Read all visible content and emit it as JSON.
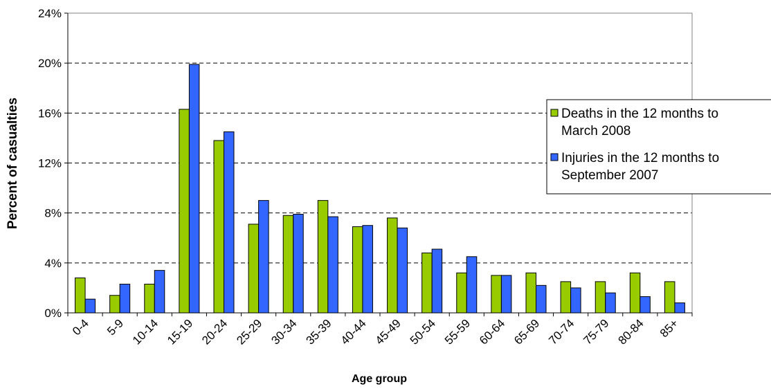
{
  "chart_data": {
    "type": "bar",
    "title": "",
    "xlabel": "Age group",
    "ylabel": "Percent of casualties",
    "ylim": [
      0,
      24
    ],
    "yticks": [
      0,
      4,
      8,
      12,
      16,
      20,
      24
    ],
    "ytick_labels": [
      "0%",
      "4%",
      "8%",
      "12%",
      "16%",
      "20%",
      "24%"
    ],
    "grid": true,
    "legend_position": "right",
    "categories": [
      "0-4",
      "5-9",
      "10-14",
      "15-19",
      "20-24",
      "25-29",
      "30-34",
      "35-39",
      "40-44",
      "45-49",
      "50-54",
      "55-59",
      "60-64",
      "65-69",
      "70-74",
      "75-79",
      "80-84",
      "85+"
    ],
    "series": [
      {
        "name": "Deaths in the 12 months to March 2008",
        "legend_lines": [
          "Deaths in the 12 months to",
          "March 2008"
        ],
        "color": "#99cc00",
        "values": [
          2.8,
          1.4,
          2.3,
          16.3,
          13.8,
          7.1,
          7.8,
          9.0,
          6.9,
          7.6,
          4.8,
          3.2,
          3.0,
          3.2,
          2.5,
          2.5,
          3.2,
          2.5
        ]
      },
      {
        "name": "Injuries in the 12 months to September 2007",
        "legend_lines": [
          "Injuries in the 12 months to",
          "September 2007"
        ],
        "color": "#3366ff",
        "values": [
          1.1,
          2.3,
          3.4,
          19.9,
          14.5,
          9.0,
          7.9,
          7.7,
          7.0,
          6.8,
          5.1,
          4.5,
          3.0,
          2.2,
          2.0,
          1.6,
          1.3,
          0.8
        ]
      }
    ]
  }
}
